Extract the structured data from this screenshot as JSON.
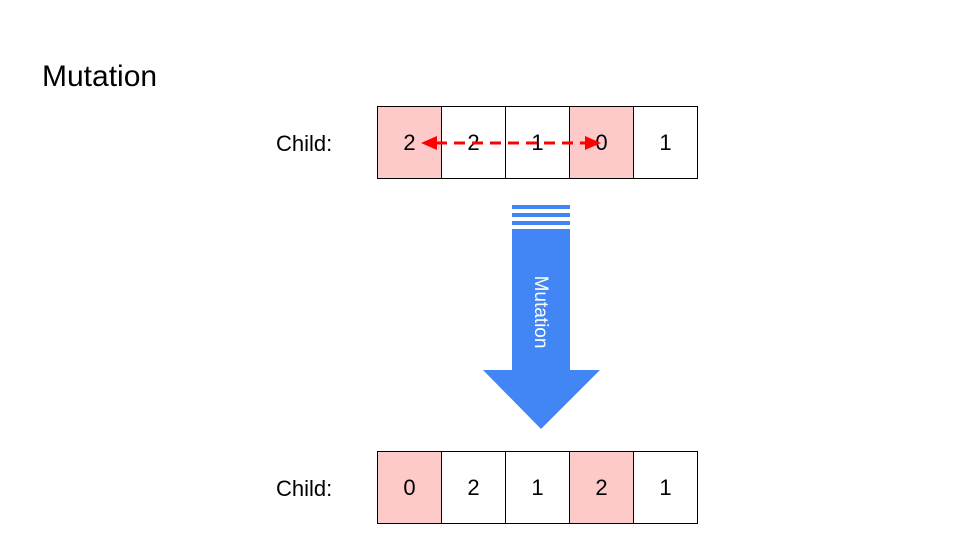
{
  "title": "Mutation",
  "colors": {
    "highlight": "#fdc9c9",
    "arrow": "#4285f4",
    "swap": "#ff0000"
  },
  "before": {
    "label": "Child:",
    "genes": [
      "2",
      "2",
      "1",
      "0",
      "1"
    ],
    "highlighted_indices": [
      0,
      3
    ]
  },
  "operation": {
    "label": "Mutation",
    "icon": "down-arrow-icon"
  },
  "swap": {
    "from_index": 0,
    "to_index": 3,
    "icon": "double-headed-dashed-arrow-icon"
  },
  "after": {
    "label": "Child:",
    "genes": [
      "0",
      "2",
      "1",
      "2",
      "1"
    ],
    "highlighted_indices": [
      0,
      3
    ]
  }
}
